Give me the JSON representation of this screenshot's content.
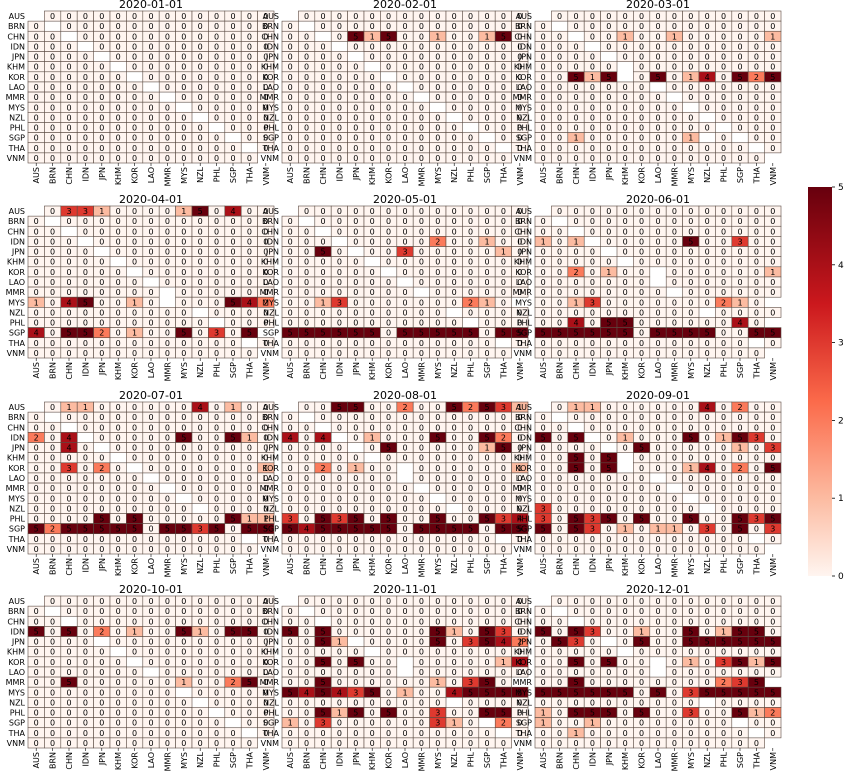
{
  "chart_data": {
    "type": "heatmap",
    "countries": [
      "AUS",
      "BRN",
      "CHN",
      "IDN",
      "JPN",
      "KHM",
      "KOR",
      "LAO",
      "MMR",
      "MYS",
      "NZL",
      "PHL",
      "SGP",
      "THA",
      "VNM"
    ],
    "colorbar": {
      "min": 0,
      "max": 5,
      "ticks": [
        0,
        1,
        2,
        3,
        4,
        5
      ]
    },
    "colormap": {
      "low": "#fff5f0",
      "mid1": "#fcbba1",
      "mid2": "#fb6a4a",
      "mid3": "#cb181d",
      "high": "#67000d"
    },
    "panels": [
      {
        "title": "2020-01-01",
        "cells": [
          "-00000000000000",
          "0-0000000000000",
          "00-000000000000",
          "000-00000000000",
          "0000-0000000000",
          "00000-000000000",
          "000000-00000000",
          "0000000-0000000",
          "00000000-000000",
          "000000000-00000",
          "0000000000-0000",
          "00000000000-000",
          "000000000000-00",
          "0000000000000-0",
          "00000000000000-"
        ]
      },
      {
        "title": "2020-02-01",
        "cells": [
          "-00000000000000",
          "0-0000000000000",
          "00-051500100150",
          "000-00000000000",
          "0000-0000000000",
          "00000-000000000",
          "000000-00000000",
          "0000000-0000000",
          "00000000-000000",
          "000000000-00000",
          "0000000000-0000",
          "00000000000-000",
          "000000000000-00",
          "0000000000000-0",
          "00000000000000-"
        ]
      },
      {
        "title": "2020-03-01",
        "cells": [
          "-00000000000000",
          "0-0000000000000",
          "00-001001000001",
          "000-00000000000",
          "0000-0000000000",
          "00000-000000000",
          "00515-050140525",
          "0000000-0000000",
          "00000000-000000",
          "000000000-00000",
          "0000000000-0000",
          "00000000000-000",
          "0010000001-0-00",
          "0000000000000-0",
          "00000000000000-"
        ]
      },
      {
        "title": "2020-04-01",
        "cells": [
          "-03310000150400",
          "0-0000000000000",
          "00-000000000000",
          "000-00000000000",
          "0000-0000000000",
          "00000-000000000",
          "000000-00000000",
          "0000000-0000000",
          "00000000-000000",
          "10450010-000542",
          "0000000000-0000",
          "00000000000-000",
          "40552010050305-",
          "0000000000000-0",
          "00000000000000-"
        ]
      },
      {
        "title": "2020-05-01",
        "cells": [
          "-00000000000000",
          "0-0000000000000",
          "00-000000000000",
          "000-00000200100",
          "0050-0030000010",
          "00000-000000000",
          "000000-00000000",
          "0000000-0000000",
          "00000000-000000",
          "00130000000210-",
          "0000000000-0000",
          "00000000000-000",
          "555555055555055",
          "0000000000000-0",
          "00000000000000-"
        ]
      },
      {
        "title": "2020-06-01",
        "cells": [
          "-00000000000000",
          "0-0000000000000",
          "00-000000000000",
          "101-00000500300",
          "0000-0000000000",
          "00000-000000000",
          "0020100-0000001",
          "0000000-0000000",
          "00000000-000000",
          "00130000000210-",
          "0000000000-0000",
          "00405500000040-",
          "555555055550055",
          "0000000000000-0",
          "00000000000000-"
        ]
      },
      {
        "title": "2020-07-01",
        "cells": [
          "-01100000040100",
          "0-0000000000000",
          "00-000000000000",
          "204-00000500510",
          "0040-0000000000",
          "00000-000000000",
          "003020-00000001",
          "0000000-0000000",
          "00000000-000000",
          "000000000-00000",
          "0000000000-0000",
          "000050500000511",
          "525555505535055",
          "0000000000000-0",
          "00000000000000-"
        ]
      },
      {
        "title": "2020-08-01",
        "cells": [
          "-00550020052531",
          "0-0000000000000",
          "00-000000000000",
          "404-01000500520",
          "0000-0500000150",
          "00000-000000000",
          "0020100-0000001",
          "0000000-0000000",
          "00000000-000000",
          "000000000-00000",
          "0000000000-0000",
          "305350500500534",
          "545555505555055",
          "0000000000000-0",
          "00000000000000-"
        ]
      },
      {
        "title": "2020-09-01",
        "cells": [
          "-01100000040200",
          "0-0000000000000",
          "00-000000000000",
          "505-01000501530",
          "0000-0500000103",
          "00505-000000000",
          "00505-000140205",
          "0000000-0000000",
          "00000000-000000",
          "000000000-00000",
          "3000000000-0000",
          "305350500500535",
          "505301011030503",
          "0000000000000-0",
          "00000000000000-"
        ]
      },
      {
        "title": "2020-10-01",
        "cells": [
          "-00000000000000",
          "0-0000000000000",
          "00-000000000000",
          "505020100510550",
          "0000-0000000000",
          "00000-000000000",
          "000000-00000000",
          "0000000-0000000",
          "005000000100250",
          "000000000-00000",
          "0000000000-0000",
          "00000000000-000",
          "000000000000-00",
          "0000000000000-0",
          "00000000000000-"
        ]
      },
      {
        "title": "2020-11-01",
        "cells": [
          "-00000000000000",
          "0-0000000000000",
          "00-000000000000",
          "505000000510530",
          "0051-0000503542",
          "00000-000000000",
          "0050500-0000014",
          "0000000-0000000",
          "00500000010350-",
          "545435010045555",
          "0000000000-0000",
          "005150500300550",
          "103000000310-20",
          "0000000000000-0",
          "00000000000000-"
        ]
      },
      {
        "title": "2020-12-01",
        "cells": [
          "-00000000000000",
          "0-0000000000000",
          "00-000000000000",
          "505300100501550",
          "0530-0500555555",
          "00000-000000000",
          "0050500-0103515",
          "0000000-0000000",
          "00500000000235-",
          "555555050355555",
          "0000000000-0000",
          "105550500300512",
          "100100000000-00",
          "0010000000000-0",
          "00000000000000-"
        ]
      }
    ]
  }
}
